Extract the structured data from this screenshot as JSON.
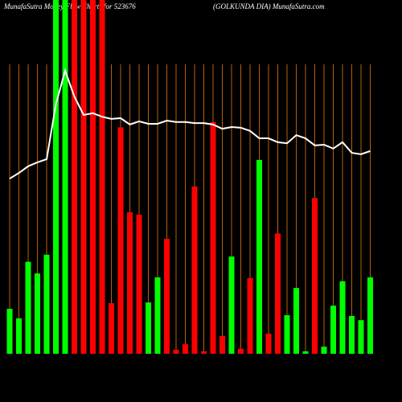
{
  "chart_data": {
    "type": "bar",
    "title": "MunafaSutra Money Flow Charts for 523676",
    "subtitle": "(GOLKUNDA DIA) MunafaSutra.com",
    "categories": [
      null,
      null,
      null,
      null,
      null,
      null,
      null,
      null,
      null,
      null,
      null,
      null,
      null,
      null,
      null,
      null,
      null,
      null,
      null,
      null,
      null,
      null,
      null,
      null,
      null,
      null,
      null,
      null,
      null,
      null,
      null,
      null,
      null,
      null,
      null,
      null,
      null,
      null,
      null,
      null
    ],
    "values": [
      12.7,
      10,
      26,
      22.7,
      28,
      100,
      100,
      100,
      100,
      100,
      100,
      14.3,
      64,
      40,
      39.3,
      14.5,
      21.6,
      32.5,
      1.1,
      2.7,
      47.3,
      0.7,
      65.5,
      5,
      27.5,
      1.4,
      21.4,
      54.8,
      5.7,
      34,
      10.9,
      18.6,
      0.7,
      44,
      2,
      13.6,
      20.5,
      10.7,
      9.5,
      21.6
    ],
    "colors": [
      "#00ff00",
      "#00ff00",
      "#00ff00",
      "#00ff00",
      "#00ff00",
      "#00ff00",
      "#00ff00",
      "#ff0000",
      "#ff0000",
      "#ff0000",
      "#ff0000",
      "#ff0000",
      "#ff0000",
      "#ff0000",
      "#ff0000",
      "#00ff00",
      "#00ff00",
      "#ff0000",
      "#ff0000",
      "#ff0000",
      "#ff0000",
      "#ff0000",
      "#ff0000",
      "#ff0000",
      "#00ff00",
      "#ff0000",
      "#ff0000",
      "#00ff00",
      "#ff0000",
      "#ff0000",
      "#00ff00",
      "#00ff00",
      "#00ff00",
      "#ff0000",
      "#00ff00",
      "#00ff00",
      "#00ff00",
      "#00ff00",
      "#00ff00",
      "#00ff00"
    ],
    "line": {
      "color": "#ffffff",
      "values": [
        49.5,
        51.1,
        53,
        54.1,
        55,
        70.5,
        80,
        72.7,
        67.5,
        68,
        67,
        66.4,
        66.6,
        64.8,
        65.7,
        65,
        65,
        65.9,
        65.5,
        65.5,
        65.2,
        65.2,
        64.8,
        63.6,
        64.1,
        63.9,
        63,
        60.9,
        60.9,
        59.8,
        59.5,
        61.8,
        60.9,
        58.9,
        59.1,
        58,
        59.8,
        56.8,
        56.4,
        57.3
      ]
    },
    "ylim": [
      0,
      100
    ],
    "grid_color": "#b8600a"
  }
}
